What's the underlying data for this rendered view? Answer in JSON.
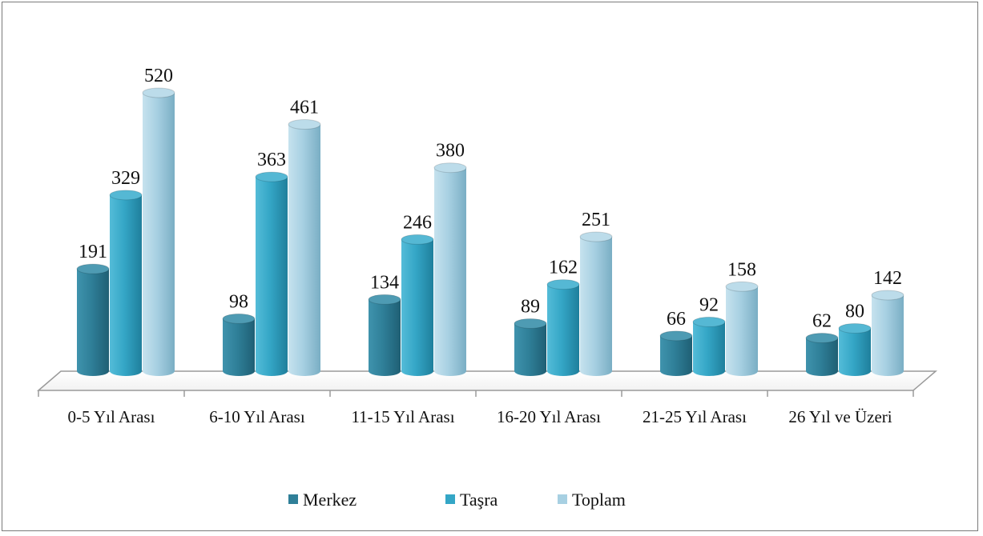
{
  "chart_data": {
    "type": "bar",
    "categories": [
      "0-5 Yıl Arası",
      "6-10 Yıl Arası",
      "11-15 Yıl Arası",
      "16-20 Yıl Arası",
      "21-25 Yıl Arası",
      "26 Yıl ve Üzeri"
    ],
    "series": [
      {
        "name": "Merkez",
        "values": [
          191,
          98,
          134,
          89,
          66,
          62
        ]
      },
      {
        "name": "Taşra",
        "values": [
          329,
          363,
          246,
          162,
          92,
          80
        ]
      },
      {
        "name": "Toplam",
        "values": [
          520,
          461,
          380,
          251,
          158,
          142
        ]
      }
    ],
    "ylim": [
      0,
      520
    ],
    "legend_position": "bottom",
    "grid": false,
    "colors": {
      "Merkez": "#2f7f98",
      "Taşra": "#34a6c6",
      "Toplam": "#a7d0e2"
    }
  }
}
